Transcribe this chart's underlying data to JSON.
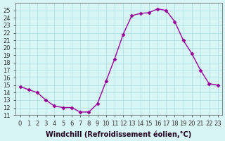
{
  "hours": [
    0,
    1,
    2,
    3,
    4,
    5,
    6,
    7,
    8,
    9,
    10,
    11,
    12,
    13,
    14,
    15,
    16,
    17,
    18,
    19,
    20,
    21,
    22,
    23
  ],
  "values": [
    14.8,
    14.4,
    14.0,
    13.0,
    12.2,
    12.0,
    12.0,
    11.4,
    11.4,
    12.5,
    15.5,
    18.5,
    21.8,
    24.3,
    24.6,
    24.7,
    25.2,
    25.0,
    23.5,
    21.0,
    19.2,
    17.0,
    15.2,
    15.0
  ],
  "line_color": "#990099",
  "marker": "D",
  "marker_size": 2.5,
  "bg_color": "#d8f5f5",
  "grid_color": "#aadddd",
  "xlabel": "Windchill (Refroidissement éolien,°C)",
  "xlim": [
    -0.5,
    23.5
  ],
  "ylim": [
    11,
    26
  ],
  "xtick_labels": [
    "0",
    "1",
    "2",
    "3",
    "4",
    "5",
    "6",
    "7",
    "8",
    "9",
    "10",
    "11",
    "12",
    "13",
    "14",
    "15",
    "16",
    "17",
    "18",
    "19",
    "20",
    "21",
    "22",
    "23"
  ],
  "ytick_values": [
    11,
    12,
    13,
    14,
    15,
    16,
    17,
    18,
    19,
    20,
    21,
    22,
    23,
    24,
    25
  ],
  "xlabel_fontsize": 7,
  "tick_fontsize": 6,
  "linewidth": 1.0
}
